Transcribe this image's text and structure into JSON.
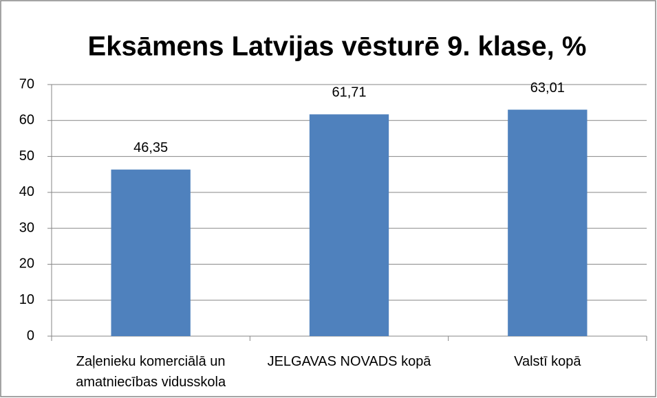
{
  "chart_data": {
    "type": "bar",
    "title": "Eksāmens Latvijas vēsturē 9. klase, %",
    "categories": [
      "Zaļenieku komerciālā un amatniecības vidusskola",
      "JELGAVAS NOVADS kopā",
      "Valstī kopā"
    ],
    "values": [
      46.35,
      61.71,
      63.01
    ],
    "value_labels": [
      "46,35",
      "61,71",
      "63,01"
    ],
    "color": "#4f81bd",
    "ylim": [
      0,
      70
    ],
    "yticks": [
      0,
      10,
      20,
      30,
      40,
      50,
      60,
      70
    ],
    "grid": true
  }
}
